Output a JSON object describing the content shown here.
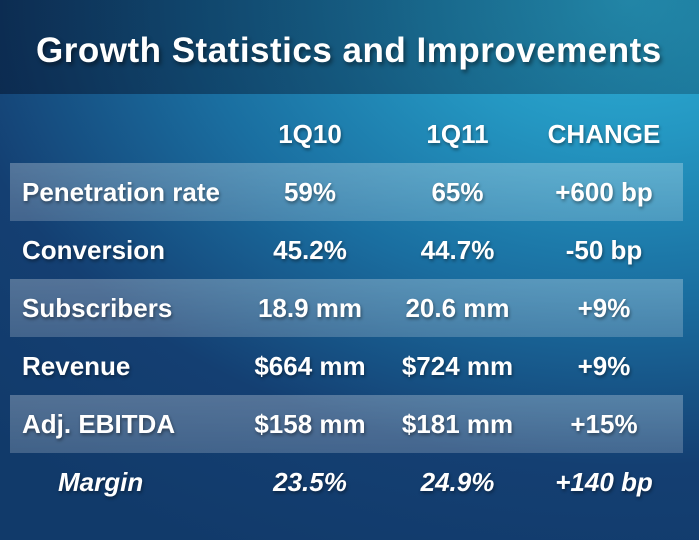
{
  "slide": {
    "title": "Growth Statistics and Improvements"
  },
  "table": {
    "columns": [
      "",
      "1Q10",
      "1Q11",
      "CHANGE"
    ],
    "rows": [
      {
        "label": "Penetration rate",
        "values": [
          "59%",
          "65%",
          "+600 bp"
        ]
      },
      {
        "label": "Conversion",
        "values": [
          "45.2%",
          "44.7%",
          "-50 bp"
        ]
      },
      {
        "label": "Subscribers",
        "values": [
          "18.9 mm",
          "20.6 mm",
          "+9%"
        ]
      },
      {
        "label": "Revenue",
        "values": [
          "$664 mm",
          "$724 mm",
          "+9%"
        ]
      },
      {
        "label": "Adj. EBITDA",
        "values": [
          "$158 mm",
          "$181 mm",
          "+15%"
        ]
      },
      {
        "label": "Margin",
        "values": [
          "23.5%",
          "24.9%",
          "+140 bp"
        ]
      }
    ]
  },
  "colors": {
    "background_dark": "#113a6a",
    "background_cyan": "#2fb3da",
    "title_band_overlay": "#04142c",
    "row_highlight": "#ffffff",
    "text": "#ffffff"
  }
}
